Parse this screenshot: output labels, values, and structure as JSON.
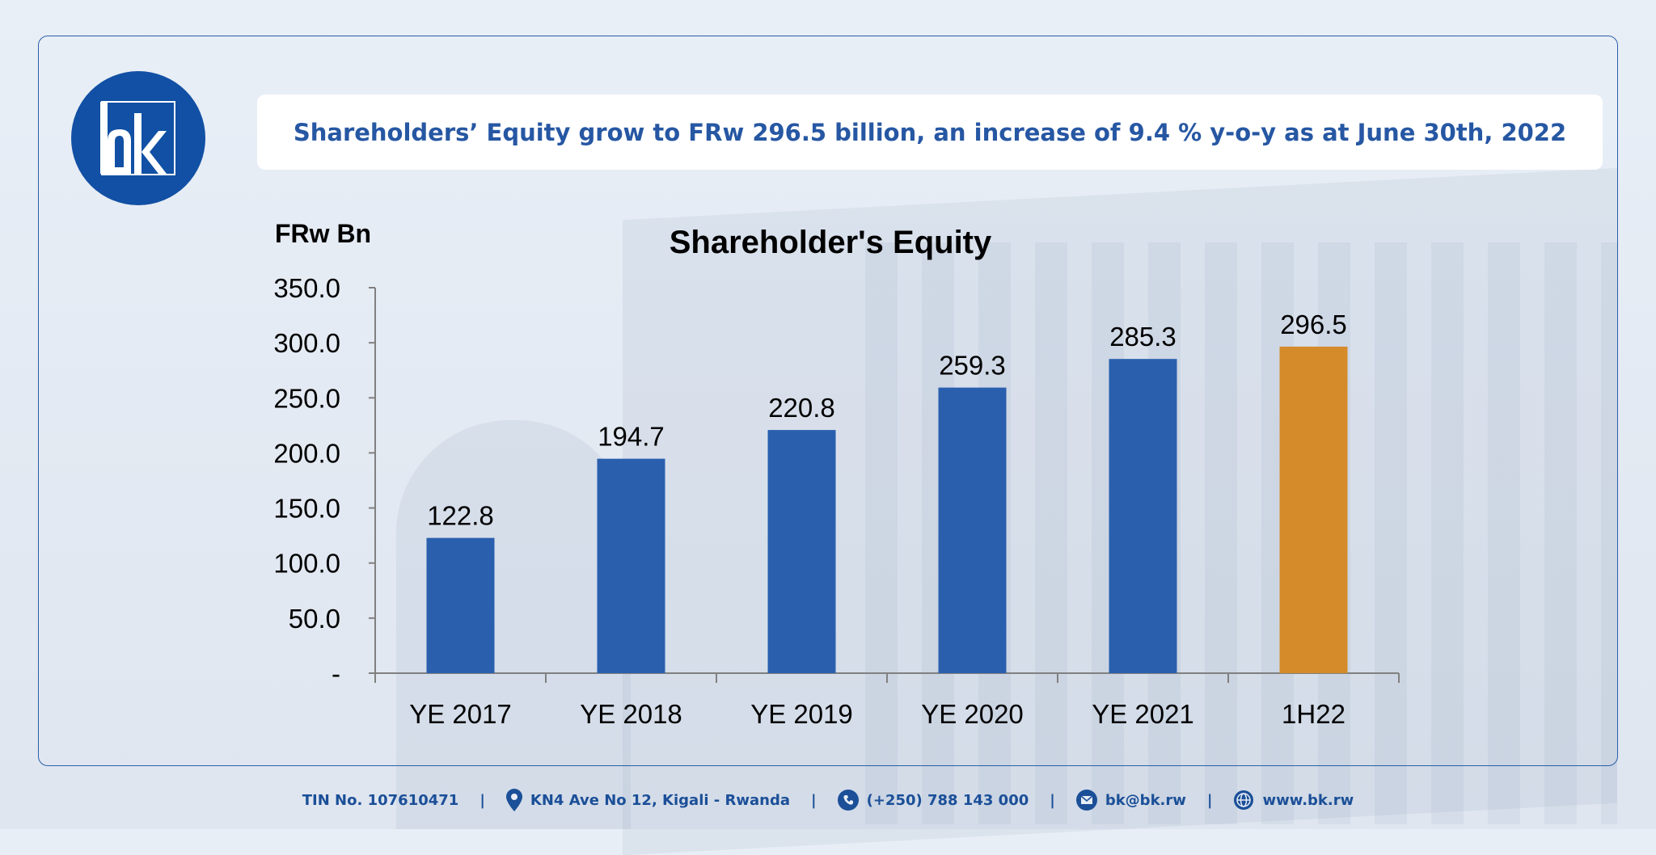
{
  "headline": "Shareholders’ Equity grow to FRw 296.5 billion, an increase of 9.4 % y-o-y as at June 30th, 2022",
  "colors": {
    "brand_blue": "#1150a4",
    "bar_blue": "#2a5fae",
    "bar_orange": "#d58b2a",
    "headline_text": "#2657a3"
  },
  "chart_data": {
    "type": "bar",
    "title": "Shareholder's Equity",
    "ylabel": "FRw Bn",
    "xlabel": "",
    "categories": [
      "YE 2017",
      "YE 2018",
      "YE 2019",
      "YE 2020",
      "YE 2021",
      "1H22"
    ],
    "values": [
      122.8,
      194.7,
      220.8,
      259.3,
      285.3,
      296.5
    ],
    "value_labels": [
      "122.8",
      "194.7",
      "220.8",
      "259.3",
      "285.3",
      "296.5"
    ],
    "highlight_category": "1H22",
    "ylim": [
      0,
      350
    ],
    "yticks": [
      0,
      50,
      100,
      150,
      200,
      250,
      300,
      350
    ],
    "ytick_labels": [
      "-",
      "50.0",
      "100.0",
      "150.0",
      "200.0",
      "250.0",
      "300.0",
      "350.0"
    ],
    "grid": false,
    "legend": "none"
  },
  "footer": {
    "tin": "TIN No. 107610471",
    "address": "KN4 Ave No 12, Kigali - Rwanda",
    "phone": "(+250) 788 143 000",
    "email": "bk@bk.rw",
    "website": "www.bk.rw",
    "separator": "|"
  },
  "icons": {
    "location": "location-pin-icon",
    "phone": "phone-icon",
    "email": "mail-icon",
    "web": "globe-icon"
  }
}
